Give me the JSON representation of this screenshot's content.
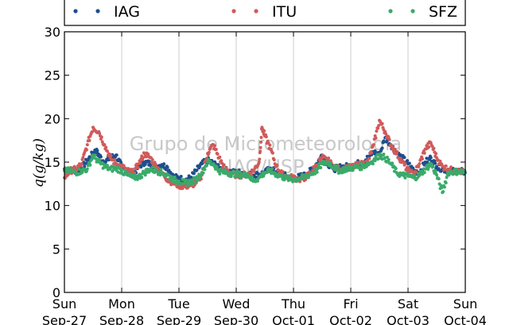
{
  "chart_data": {
    "type": "scatter",
    "ylabel": "q(g/kg)",
    "ylim": [
      0,
      30
    ],
    "yticks": [
      0,
      5,
      10,
      15,
      20,
      25,
      30
    ],
    "xlim": [
      0,
      7
    ],
    "xticks": [
      {
        "day": "Sun",
        "date": "Sep-27",
        "x": 0
      },
      {
        "day": "Mon",
        "date": "Sep-28",
        "x": 1
      },
      {
        "day": "Tue",
        "date": "Sep-29",
        "x": 2
      },
      {
        "day": "Wed",
        "date": "Sep-30",
        "x": 3
      },
      {
        "day": "Thu",
        "date": "Oct-01",
        "x": 4
      },
      {
        "day": "Fri",
        "date": "Oct-02",
        "x": 5
      },
      {
        "day": "Sat",
        "date": "Oct-03",
        "x": 6
      },
      {
        "day": "Sun",
        "date": "Oct-04",
        "x": 7
      }
    ],
    "grid": "vertical",
    "legend_position": "top",
    "watermark": [
      "Grupo de Micrometeorologia",
      "IAG/USP"
    ],
    "series": [
      {
        "name": "IAG",
        "color": "#1f4e8c",
        "x": [
          0,
          0.1,
          0.2,
          0.3,
          0.4,
          0.5,
          0.55,
          0.6,
          0.7,
          0.8,
          0.9,
          1.0,
          1.1,
          1.2,
          1.3,
          1.4,
          1.5,
          1.6,
          1.7,
          1.8,
          1.9,
          2.0,
          2.1,
          2.2,
          2.3,
          2.4,
          2.5,
          2.6,
          2.7,
          2.8,
          2.9,
          3.0,
          3.1,
          3.2,
          3.3,
          3.4,
          3.5,
          3.6,
          3.7,
          3.8,
          3.9,
          4.0,
          4.1,
          4.2,
          4.3,
          4.4,
          4.5,
          4.6,
          4.7,
          4.8,
          4.9,
          5.0,
          5.1,
          5.2,
          5.3,
          5.4,
          5.5,
          5.6,
          5.7,
          5.8,
          5.9,
          6.0,
          6.1,
          6.2,
          6.3,
          6.4,
          6.5,
          6.6,
          6.7,
          6.8,
          6.9,
          7.0
        ],
        "y": [
          14.2,
          14.1,
          14.0,
          14.3,
          15.2,
          16.0,
          16.3,
          15.8,
          15.0,
          15.5,
          15.8,
          14.5,
          13.8,
          13.6,
          14.5,
          15.0,
          14.8,
          14.5,
          14.7,
          14.4,
          13.3,
          13.2,
          12.9,
          13.2,
          14.0,
          14.8,
          15.2,
          14.9,
          14.3,
          14.1,
          13.9,
          13.8,
          13.8,
          13.6,
          13.5,
          13.6,
          13.8,
          14.3,
          13.9,
          13.5,
          13.4,
          13.2,
          13.3,
          13.5,
          14.0,
          14.8,
          15.8,
          14.8,
          14.2,
          14.4,
          14.5,
          14.5,
          14.8,
          15.0,
          15.5,
          16.2,
          15.8,
          17.8,
          17.0,
          16.0,
          15.5,
          14.8,
          14.0,
          13.8,
          15.0,
          15.5,
          14.5,
          14.2,
          14.0,
          14.0,
          14.0,
          13.8
        ]
      },
      {
        "name": "ITU",
        "color": "#d05a5a",
        "x": [
          0,
          0.1,
          0.2,
          0.3,
          0.4,
          0.5,
          0.6,
          0.7,
          0.8,
          0.9,
          1.0,
          1.1,
          1.2,
          1.3,
          1.4,
          1.5,
          1.6,
          1.7,
          1.8,
          1.9,
          2.0,
          2.1,
          2.2,
          2.3,
          2.4,
          2.5,
          2.6,
          2.7,
          2.8,
          2.9,
          3.0,
          3.1,
          3.2,
          3.3,
          3.4,
          3.45,
          3.5,
          3.6,
          3.7,
          3.8,
          3.9,
          4.0,
          4.1,
          4.2,
          4.3,
          4.4,
          4.5,
          4.6,
          4.7,
          4.8,
          4.9,
          5.0,
          5.1,
          5.2,
          5.3,
          5.4,
          5.5,
          5.6,
          5.7,
          5.8,
          5.9,
          6.0,
          6.1,
          6.2,
          6.3,
          6.4,
          6.5,
          6.6,
          6.7,
          6.8,
          6.9,
          7.0
        ],
        "y": [
          13.2,
          14.0,
          14.2,
          14.8,
          17.0,
          19.0,
          18.5,
          17.0,
          15.5,
          14.8,
          14.5,
          14.0,
          13.8,
          14.8,
          16.0,
          15.5,
          14.5,
          13.8,
          13.0,
          12.6,
          12.3,
          12.2,
          12.3,
          12.6,
          13.5,
          16.0,
          17.0,
          15.5,
          14.2,
          13.8,
          13.5,
          13.5,
          13.6,
          14.0,
          15.0,
          19.0,
          18.0,
          16.5,
          14.5,
          13.6,
          13.3,
          13.2,
          13.0,
          13.2,
          13.8,
          14.6,
          15.5,
          15.2,
          14.5,
          14.2,
          14.3,
          14.4,
          14.6,
          14.8,
          15.0,
          17.0,
          19.8,
          18.5,
          17.0,
          16.0,
          15.0,
          14.0,
          13.6,
          14.8,
          16.5,
          17.2,
          15.5,
          14.5,
          14.2,
          14.0,
          13.9,
          13.8
        ]
      },
      {
        "name": "SFZ",
        "color": "#3aaa6a",
        "x": [
          0,
          0.1,
          0.2,
          0.3,
          0.4,
          0.5,
          0.6,
          0.7,
          0.8,
          0.9,
          1.0,
          1.1,
          1.2,
          1.3,
          1.4,
          1.5,
          1.6,
          1.7,
          1.8,
          1.9,
          2.0,
          2.1,
          2.2,
          2.3,
          2.4,
          2.5,
          2.6,
          2.7,
          2.8,
          2.9,
          3.0,
          3.1,
          3.2,
          3.3,
          3.4,
          3.5,
          3.6,
          3.7,
          3.8,
          3.9,
          4.0,
          4.1,
          4.2,
          4.3,
          4.4,
          4.5,
          4.6,
          4.7,
          4.8,
          4.9,
          5.0,
          5.1,
          5.2,
          5.3,
          5.4,
          5.5,
          5.6,
          5.7,
          5.8,
          5.9,
          6.0,
          6.1,
          6.2,
          6.3,
          6.4,
          6.5,
          6.6,
          6.7,
          6.8,
          6.9,
          7.0
        ],
        "y": [
          14.0,
          14.0,
          13.8,
          14.0,
          14.2,
          15.8,
          15.0,
          14.5,
          14.2,
          14.3,
          14.0,
          13.5,
          13.2,
          13.3,
          13.8,
          14.2,
          14.0,
          13.8,
          13.5,
          13.0,
          12.8,
          12.6,
          12.7,
          13.0,
          13.8,
          15.0,
          14.8,
          14.0,
          13.8,
          13.7,
          13.6,
          13.5,
          13.6,
          12.8,
          13.2,
          13.8,
          14.0,
          13.6,
          13.3,
          13.1,
          13.0,
          13.1,
          13.3,
          13.6,
          14.0,
          14.8,
          15.0,
          14.5,
          14.0,
          14.2,
          14.3,
          14.4,
          14.5,
          14.8,
          15.2,
          15.8,
          15.5,
          14.8,
          13.8,
          13.5,
          13.4,
          13.2,
          13.5,
          14.2,
          14.8,
          13.5,
          11.5,
          13.8,
          13.9,
          13.9,
          13.8
        ]
      }
    ]
  }
}
